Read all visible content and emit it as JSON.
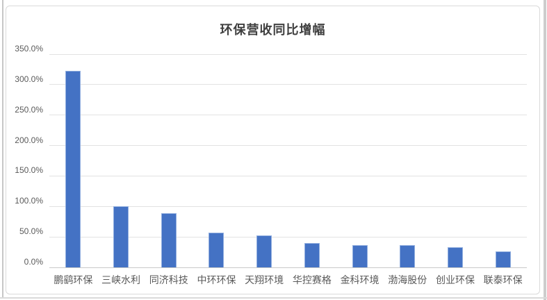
{
  "chart_data": {
    "type": "bar",
    "title": "环保营收同比增幅",
    "categories": [
      "鹏鹞环保",
      "三峡水利",
      "同济科技",
      "中环环保",
      "天翔环境",
      "华控赛格",
      "金科环境",
      "渤海股份",
      "创业环保",
      "联泰环保"
    ],
    "values": [
      323,
      100,
      89,
      57,
      53,
      40,
      37,
      36,
      33,
      26
    ],
    "unit": "%",
    "xlabel": "",
    "ylabel": "",
    "ylim": [
      0,
      350
    ],
    "ytick_step": 50,
    "ytick_labels": [
      "0.0%",
      "50.0%",
      "100.0%",
      "150.0%",
      "200.0%",
      "250.0%",
      "300.0%",
      "350.0%"
    ],
    "grid": true,
    "legend": false,
    "bar_color": "#4472c4",
    "bar_edge_color": "#92afdf",
    "gridline_color": "#e2e2e2",
    "title_color": "#3f3f3f",
    "label_color": "#595959"
  }
}
